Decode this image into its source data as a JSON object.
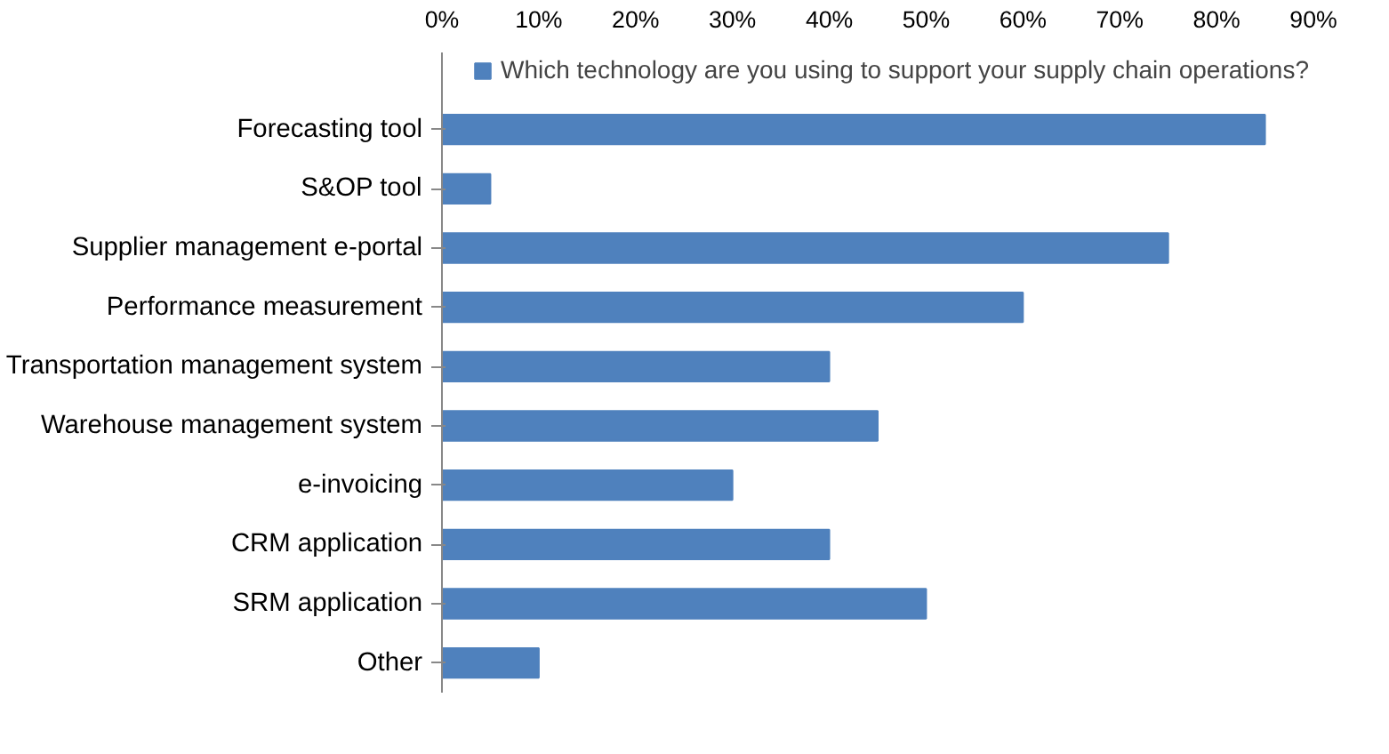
{
  "chart_data": {
    "type": "bar",
    "orientation": "horizontal",
    "categories": [
      "Forecasting tool",
      "S&OP tool",
      "Supplier management e-portal",
      "Performance measurement",
      "Transportation management system",
      "Warehouse management system",
      "e-invoicing",
      "CRM application",
      "SRM application",
      "Other"
    ],
    "series": [
      {
        "name": "Which technology are you using to support your supply chain operations?",
        "color": "#4f81bd",
        "values": [
          85,
          5,
          75,
          60,
          40,
          45,
          30,
          40,
          50,
          10
        ]
      }
    ],
    "xlim": [
      0,
      90
    ],
    "xticks": [
      {
        "value": 0,
        "label": "0%"
      },
      {
        "value": 10,
        "label": "10%"
      },
      {
        "value": 20,
        "label": "20%"
      },
      {
        "value": 30,
        "label": "30%"
      },
      {
        "value": 40,
        "label": "40%"
      },
      {
        "value": 50,
        "label": "50%"
      },
      {
        "value": 60,
        "label": "60%"
      },
      {
        "value": 70,
        "label": "70%"
      },
      {
        "value": 80,
        "label": "80%"
      },
      {
        "value": 90,
        "label": "90%"
      }
    ],
    "grid": false,
    "legend": "top"
  }
}
